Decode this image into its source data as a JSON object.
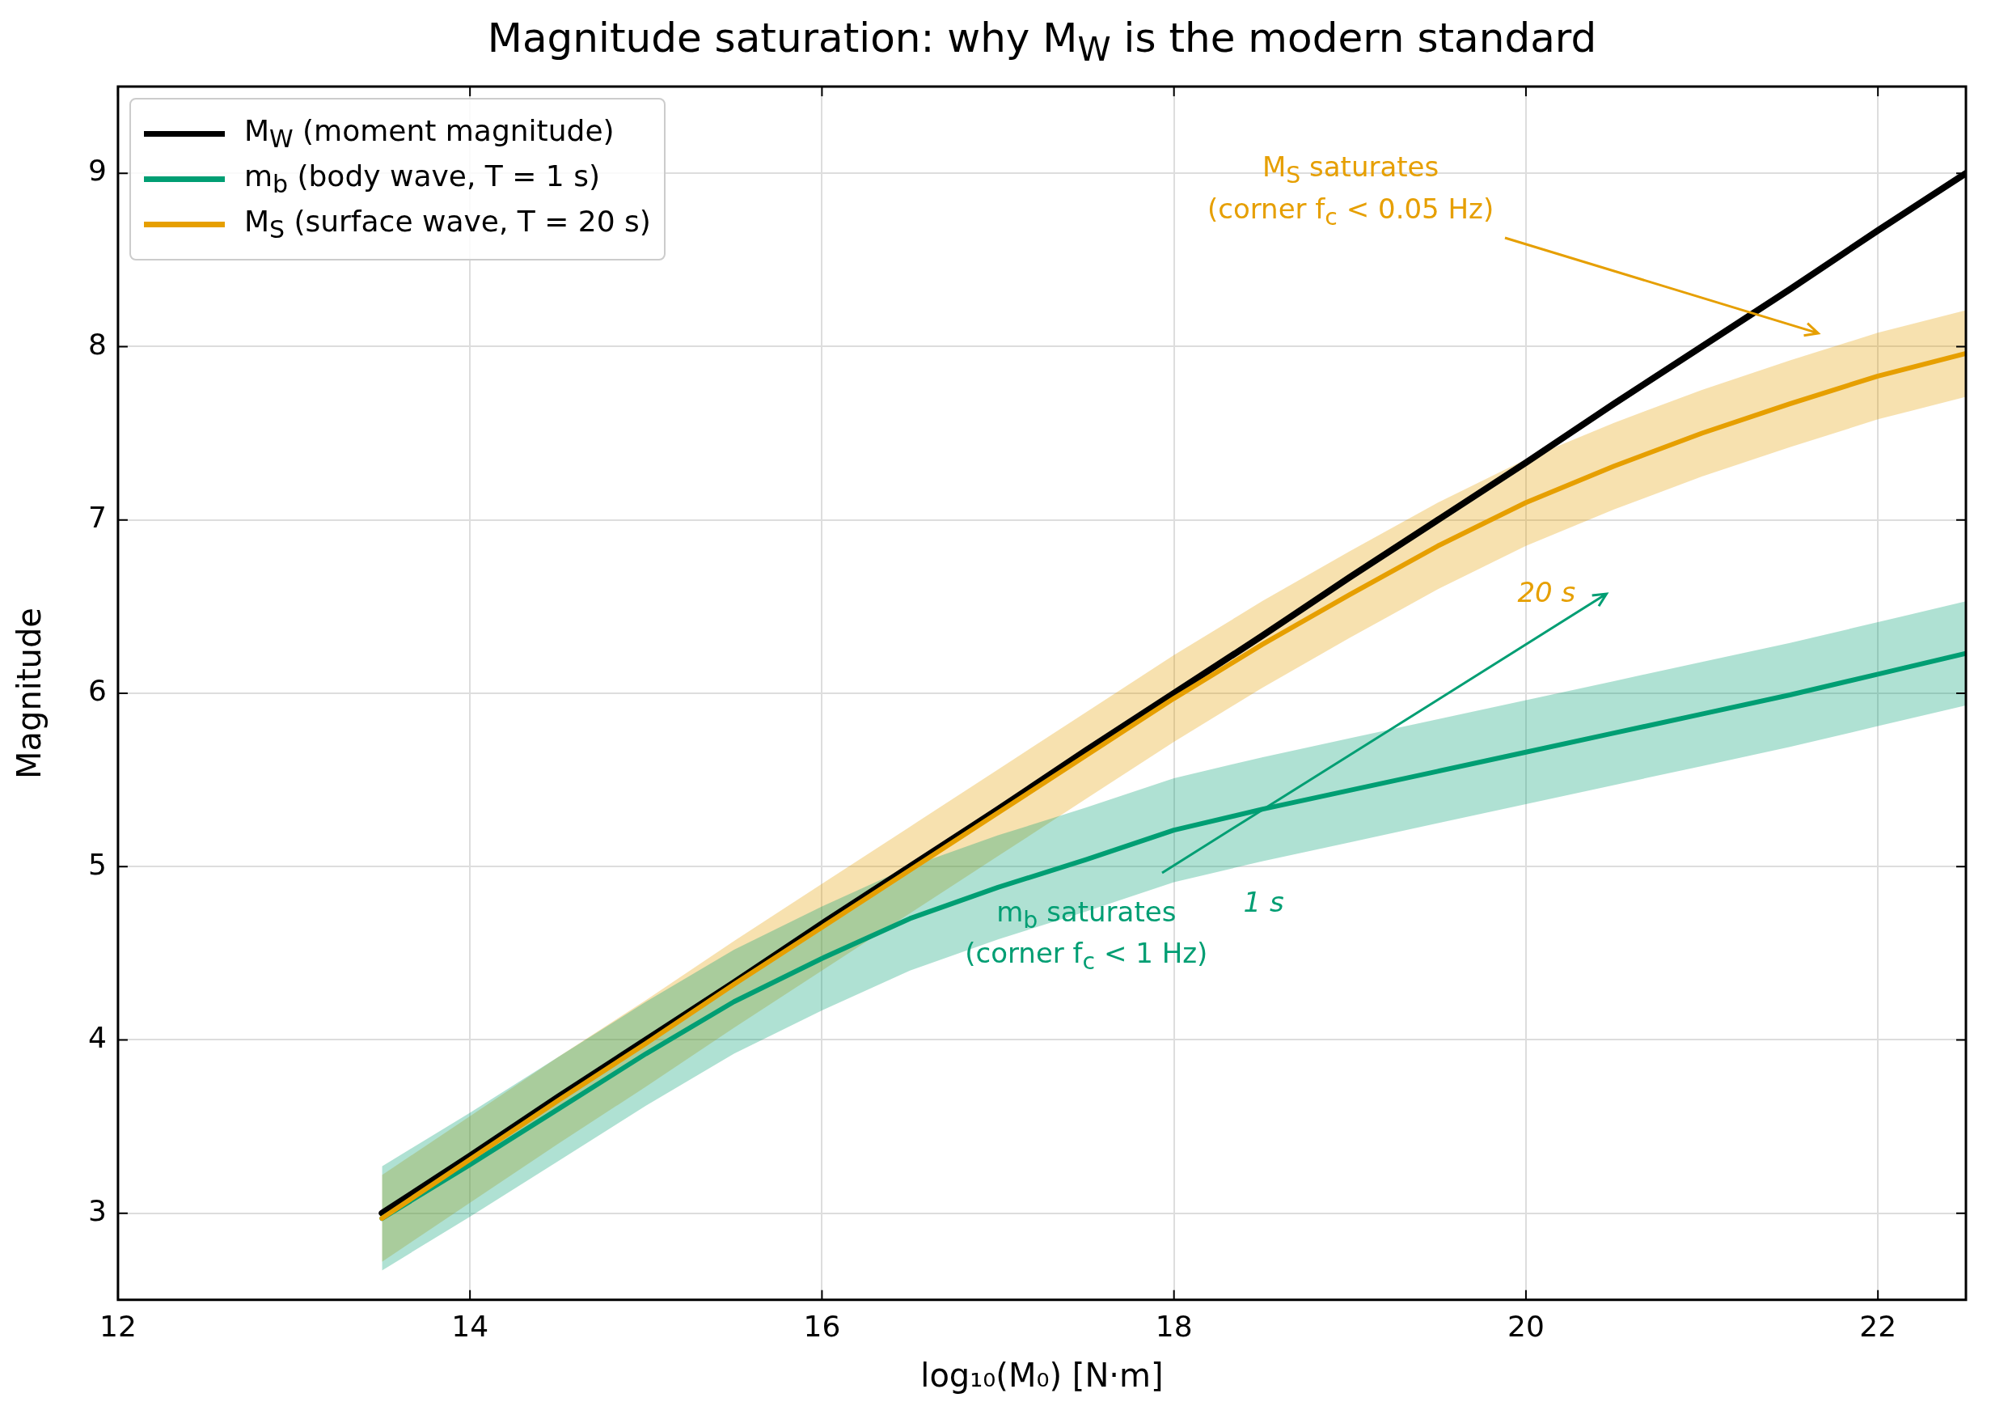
{
  "chart_data": {
    "type": "line",
    "title": "Magnitude saturation: why M$_{W}$ is the modern standard",
    "xlabel": "log₁₀(M₀)  [N·m]",
    "ylabel": "Magnitude",
    "x": [
      13.5,
      14,
      14.5,
      15,
      15.5,
      16,
      16.5,
      17,
      17.5,
      18,
      18.5,
      19,
      19.5,
      20,
      20.5,
      21,
      21.5,
      22,
      22.5
    ],
    "series": [
      {
        "name": "M$_{W}$  (moment magnitude)",
        "color": "#000000",
        "values": [
          3.0,
          3.33,
          3.67,
          4.0,
          4.33,
          4.67,
          5.0,
          5.33,
          5.67,
          6.0,
          6.33,
          6.67,
          7.0,
          7.33,
          7.67,
          8.0,
          8.33,
          8.67,
          9.0
        ]
      },
      {
        "name": "m$_{b}$  (body wave, T = 1 s)",
        "color": "#009e73",
        "values": [
          2.97,
          3.28,
          3.6,
          3.92,
          4.22,
          4.47,
          4.7,
          4.88,
          5.04,
          5.21,
          5.33,
          5.44,
          5.55,
          5.66,
          5.77,
          5.88,
          5.99,
          6.11,
          6.23
        ],
        "lower": [
          2.67,
          2.98,
          3.3,
          3.62,
          3.92,
          4.17,
          4.4,
          4.58,
          4.74,
          4.91,
          5.03,
          5.14,
          5.25,
          5.36,
          5.47,
          5.58,
          5.69,
          5.81,
          5.93
        ],
        "upper": [
          3.27,
          3.58,
          3.9,
          4.22,
          4.52,
          4.77,
          5.0,
          5.18,
          5.34,
          5.51,
          5.63,
          5.74,
          5.85,
          5.96,
          6.07,
          6.18,
          6.29,
          6.41,
          6.53
        ]
      },
      {
        "name": "M$_{S}$  (surface wave, T = 20 s)",
        "color": "#e69f00",
        "values": [
          2.97,
          3.31,
          3.65,
          3.98,
          4.32,
          4.65,
          4.98,
          5.31,
          5.64,
          5.97,
          6.28,
          6.57,
          6.85,
          7.1,
          7.31,
          7.5,
          7.67,
          7.83,
          7.96
        ],
        "lower": [
          2.72,
          3.06,
          3.4,
          3.73,
          4.07,
          4.4,
          4.73,
          5.06,
          5.39,
          5.72,
          6.03,
          6.32,
          6.6,
          6.85,
          7.06,
          7.25,
          7.42,
          7.58,
          7.71
        ],
        "upper": [
          3.22,
          3.56,
          3.9,
          4.23,
          4.57,
          4.9,
          5.23,
          5.56,
          5.89,
          6.22,
          6.53,
          6.82,
          7.1,
          7.35,
          7.56,
          7.75,
          7.92,
          8.08,
          8.21
        ]
      }
    ],
    "annotations": [
      "M$_{S}$ saturates\n(corner f$_{c}$ < 0.05 Hz)",
      "m$_{b}$ saturates\n(corner f$_{c}$ < 1 Hz)",
      "20 s",
      "1 s"
    ],
    "xlim": [
      12,
      22.5
    ],
    "xticks": [
      12,
      14,
      16,
      18,
      20,
      22
    ],
    "ylim": [
      2.5,
      9.5
    ],
    "yticks": [
      3,
      4,
      5,
      6,
      7,
      8,
      9
    ],
    "grid": true,
    "legend": "top left",
    "marker": "none",
    "line_style": "solid"
  }
}
